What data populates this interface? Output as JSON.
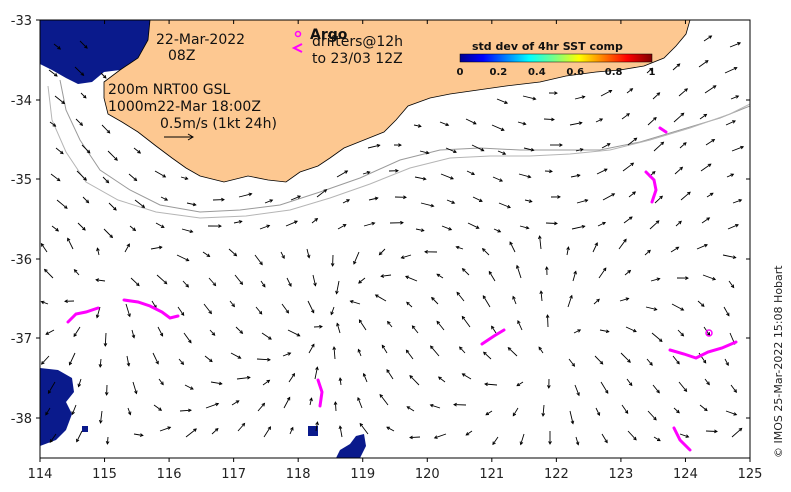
{
  "map": {
    "x_ticks": [
      "114",
      "115",
      "116",
      "117",
      "118",
      "119",
      "120",
      "121",
      "122",
      "123",
      "124",
      "125"
    ],
    "y_ticks": [
      "-33",
      "-34",
      "-35",
      "-36",
      "-37",
      "-38"
    ],
    "date_line1": "22-Mar-2022",
    "date_line2": "08Z",
    "info_line1": "200m  NRT00 GSL",
    "info_line2": "1000m22-Mar 18:00Z",
    "scale_label": "0.5m/s (1kt 24h)",
    "legend_argo": "Argo",
    "legend_drifters_line1": "drifters@12h",
    "legend_drifters_line2": "to 23/03 12Z",
    "colorbar_title": "std dev of 4hr SST comp",
    "colorbar_ticks": [
      "0",
      "0.2",
      "0.4",
      "0.6",
      "0.8",
      "1"
    ],
    "credit": "© IMOS 25-Mar-2022 15:08 Hobart",
    "colors": {
      "land": "#fdc891",
      "sst": "#0a1a8c",
      "drifter": "#ff00ff",
      "contour": "#9a9a9a"
    }
  }
}
